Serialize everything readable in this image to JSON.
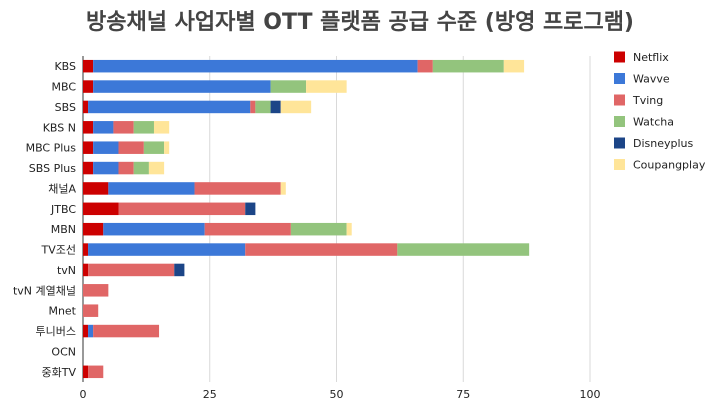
{
  "chart_data": {
    "type": "bar",
    "orientation": "horizontal",
    "stacked": true,
    "title": "방송채널 사업자별 OTT 플랫폼 공급 수준  (방영 프로그램)",
    "categories": [
      "KBS",
      "MBC",
      "SBS",
      "KBS N",
      "MBC Plus",
      "SBS Plus",
      "채널A",
      "JTBC",
      "MBN",
      "TV조선",
      "tvN",
      "tvN 계열채널",
      "Mnet",
      "투니버스",
      "OCN",
      "중화TV"
    ],
    "series": [
      {
        "name": "Netflix",
        "color": "#cc0000",
        "values": [
          2,
          2,
          1,
          2,
          2,
          2,
          5,
          7,
          4,
          1,
          1,
          0,
          0,
          1,
          0,
          1
        ]
      },
      {
        "name": "Wavve",
        "color": "#3c78d8",
        "values": [
          64,
          35,
          32,
          4,
          5,
          5,
          17,
          0,
          20,
          31,
          0,
          0,
          0,
          1,
          0,
          0
        ]
      },
      {
        "name": "Tving",
        "color": "#e06666",
        "values": [
          3,
          0,
          1,
          4,
          5,
          3,
          17,
          25,
          17,
          30,
          17,
          5,
          3,
          13,
          0,
          3
        ]
      },
      {
        "name": "Watcha",
        "color": "#93c47d",
        "values": [
          14,
          7,
          3,
          4,
          4,
          3,
          0,
          0,
          11,
          26,
          0,
          0,
          0,
          0,
          0,
          0
        ]
      },
      {
        "name": "Disneyplus",
        "color": "#1c4587",
        "values": [
          0,
          0,
          2,
          0,
          0,
          0,
          0,
          2,
          0,
          0,
          2,
          0,
          0,
          0,
          0,
          0
        ]
      },
      {
        "name": "Coupangplay",
        "color": "#ffe599",
        "values": [
          4,
          8,
          6,
          3,
          1,
          3,
          1,
          0,
          1,
          0,
          0,
          0,
          0,
          0,
          0,
          0
        ]
      }
    ],
    "xlim": [
      0,
      100
    ],
    "xticks": [
      0,
      25,
      50,
      75,
      100
    ],
    "grid": "vertical",
    "legend": "right"
  }
}
